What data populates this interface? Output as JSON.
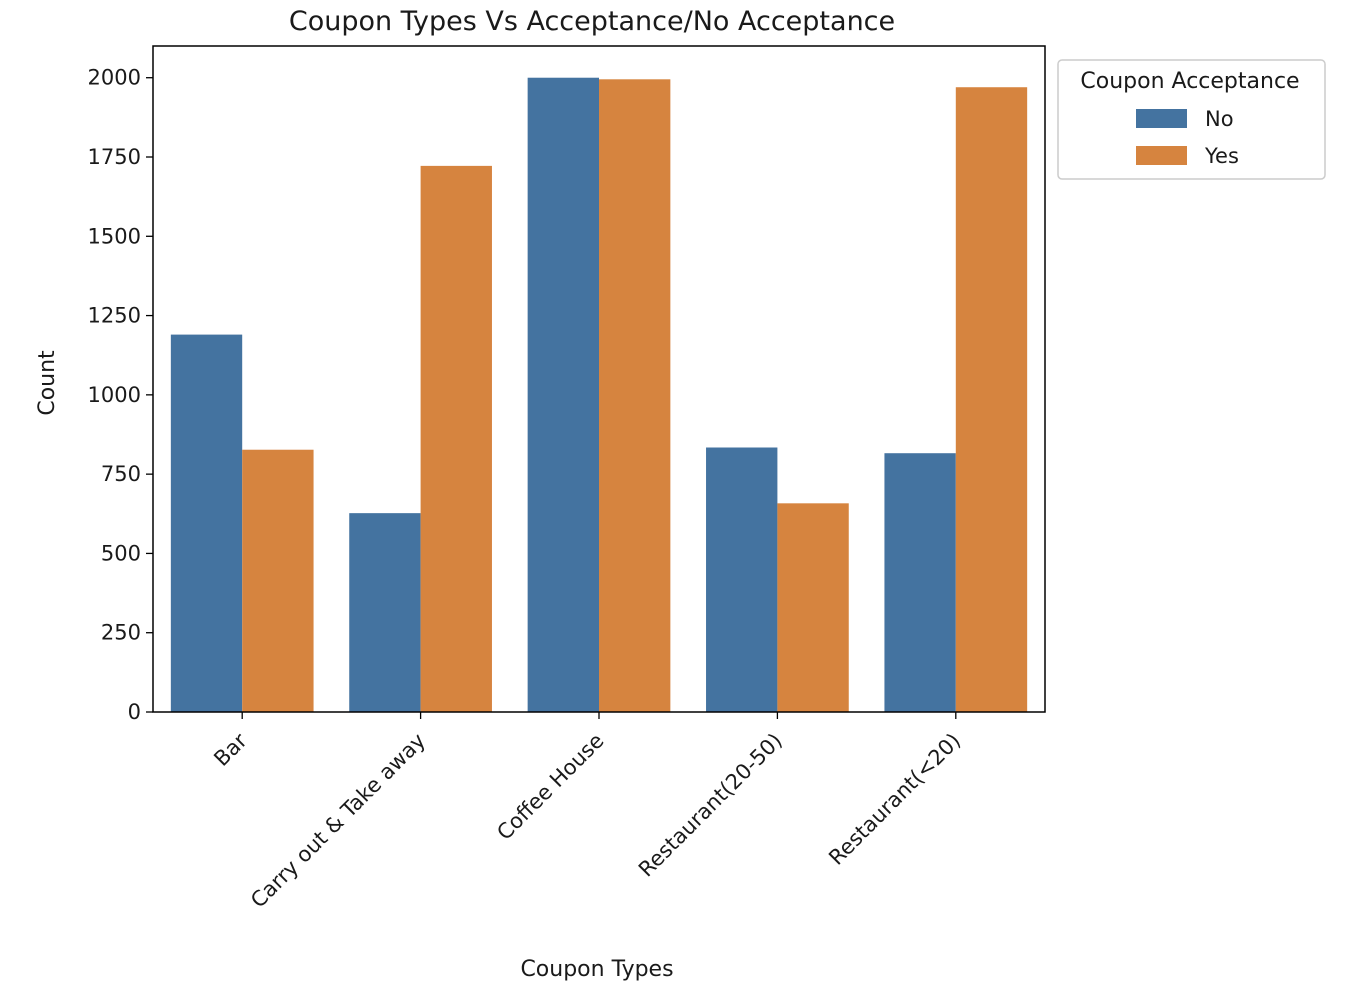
{
  "chart_data": {
    "type": "bar",
    "title": "Coupon Types Vs Acceptance/No Acceptance",
    "xlabel": "Coupon Types",
    "ylabel": "Count",
    "categories": [
      "Bar",
      "Carry out & Take away",
      "Coffee House",
      "Restaurant(20-50)",
      "Restaurant(<20)"
    ],
    "series": [
      {
        "name": "No",
        "color": "#4473a0",
        "values": [
          1190,
          627,
          2000,
          834,
          816
        ]
      },
      {
        "name": "Yes",
        "color": "#d6843f",
        "values": [
          827,
          1722,
          1995,
          658,
          1970
        ]
      }
    ],
    "yticks": [
      0,
      250,
      500,
      750,
      1000,
      1250,
      1500,
      1750,
      2000
    ],
    "ylim": [
      0,
      2100
    ],
    "grid": false,
    "legend": {
      "title": "Coupon Acceptance",
      "placement": "outside-top-right"
    }
  }
}
